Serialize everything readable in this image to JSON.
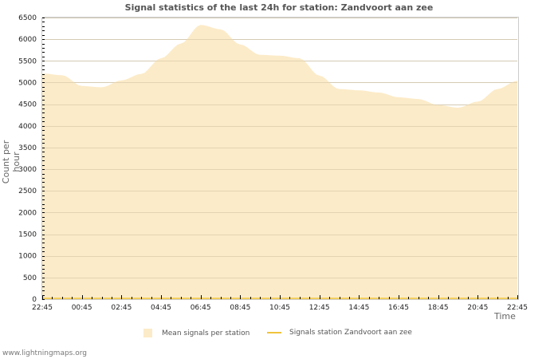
{
  "chart_data": {
    "type": "area",
    "title": "Signal statistics of the last 24h for station: Zandvoort aan zee",
    "xlabel": "Time",
    "ylabel": "Count per hour",
    "ylim": [
      0,
      6500
    ],
    "yticks": [
      0,
      500,
      1000,
      1500,
      2000,
      2500,
      3000,
      3500,
      4000,
      4500,
      5000,
      5500,
      6000,
      6500
    ],
    "xtick_labels": [
      "22:45",
      "00:45",
      "02:45",
      "04:45",
      "06:45",
      "08:45",
      "10:45",
      "12:45",
      "14:45",
      "16:45",
      "18:45",
      "20:45",
      "22:45"
    ],
    "grid": true,
    "legend_position": "bottom",
    "x": [
      "22:45",
      "23:45",
      "00:45",
      "01:45",
      "02:45",
      "03:45",
      "04:45",
      "05:45",
      "06:45",
      "07:45",
      "08:45",
      "09:45",
      "10:45",
      "11:45",
      "12:45",
      "13:45",
      "14:45",
      "15:45",
      "16:45",
      "17:45",
      "18:45",
      "19:45",
      "20:45",
      "21:45",
      "22:45"
    ],
    "series": [
      {
        "name": "Mean signals per station",
        "type": "area",
        "color": "#fcebc8",
        "values": [
          5210,
          5170,
          4920,
          4890,
          5050,
          5200,
          5560,
          5900,
          6330,
          6230,
          5880,
          5640,
          5620,
          5560,
          5160,
          4850,
          4820,
          4770,
          4660,
          4620,
          4480,
          4420,
          4560,
          4850,
          5040
        ]
      },
      {
        "name": "Signals station Zandvoort aan zee",
        "type": "line",
        "color": "#f0c43c",
        "values": [
          0,
          0,
          0,
          0,
          0,
          0,
          0,
          0,
          0,
          0,
          0,
          0,
          0,
          0,
          0,
          0,
          0,
          0,
          0,
          0,
          0,
          0,
          0,
          0,
          0
        ]
      }
    ]
  },
  "labels": {
    "title": "Signal statistics of the last 24h for station: Zandvoort aan zee",
    "ylabel": "Count per hour",
    "xlabel": "Time",
    "legend_mean": "Mean signals per station",
    "legend_station": "Signals station Zandvoort aan zee",
    "footer": "www.lightningmaps.org"
  }
}
